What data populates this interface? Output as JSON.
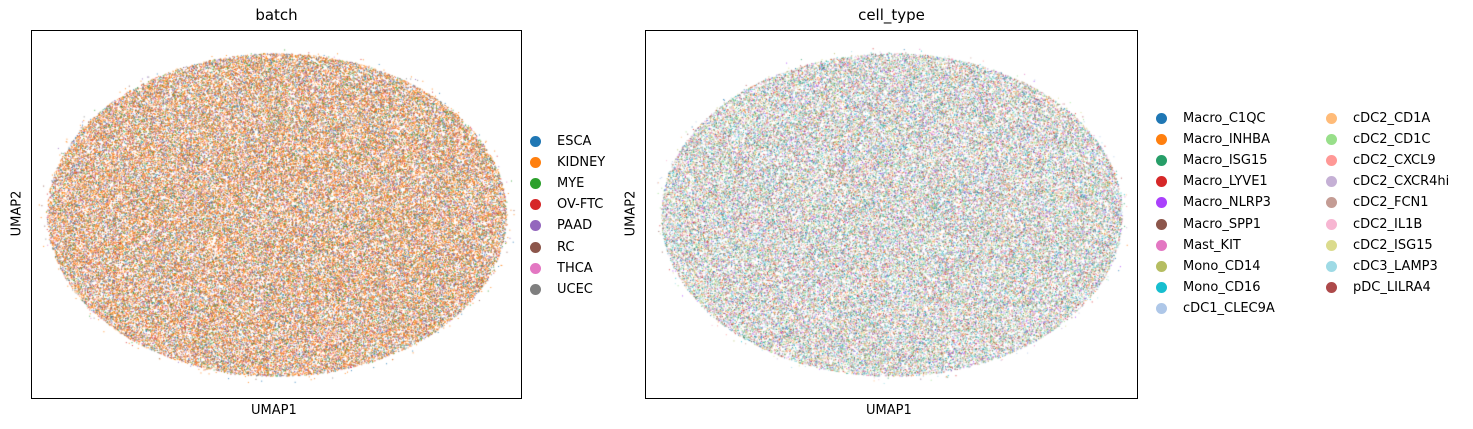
{
  "chart_data": [
    {
      "type": "scatter",
      "title": "batch",
      "xlabel": "UMAP1",
      "ylabel": "UMAP2",
      "ticks": "none",
      "grid": false,
      "legend_placement": "right",
      "series": [
        {
          "name": "ESCA",
          "color": "#1f77b4",
          "weight": 1
        },
        {
          "name": "KIDNEY",
          "color": "#ff7f0e",
          "weight": 5
        },
        {
          "name": "MYE",
          "color": "#2ca02c",
          "weight": 1
        },
        {
          "name": "OV-FTC",
          "color": "#d62728",
          "weight": 0.6
        },
        {
          "name": "PAAD",
          "color": "#9467bd",
          "weight": 0.6
        },
        {
          "name": "RC",
          "color": "#8c564b",
          "weight": 1
        },
        {
          "name": "THCA",
          "color": "#e377c2",
          "weight": 0.6
        },
        {
          "name": "UCEC",
          "color": "#7f7f7f",
          "weight": 0.8
        }
      ]
    },
    {
      "type": "scatter",
      "title": "cell_type",
      "xlabel": "UMAP1",
      "ylabel": "UMAP2",
      "ticks": "none",
      "grid": false,
      "legend_placement": "right",
      "series": [
        {
          "name": "Macro_C1QC",
          "color": "#1f77b4",
          "weight": 1
        },
        {
          "name": "Macro_INHBA",
          "color": "#ff7f0e",
          "weight": 0.6
        },
        {
          "name": "Macro_ISG15",
          "color": "#279e68",
          "weight": 1
        },
        {
          "name": "Macro_LYVE1",
          "color": "#d62728",
          "weight": 0.6
        },
        {
          "name": "Macro_NLRP3",
          "color": "#aa40fc",
          "weight": 0.6
        },
        {
          "name": "Macro_SPP1",
          "color": "#8c564b",
          "weight": 0.6
        },
        {
          "name": "Mast_KIT",
          "color": "#e377c2",
          "weight": 0.6
        },
        {
          "name": "Mono_CD14",
          "color": "#b5bd61",
          "weight": 0.8
        },
        {
          "name": "Mono_CD16",
          "color": "#17becf",
          "weight": 1
        },
        {
          "name": "cDC1_CLEC9A",
          "color": "#aec7e8",
          "weight": 1
        },
        {
          "name": "cDC2_CD1A",
          "color": "#ffbb78",
          "weight": 0.6
        },
        {
          "name": "cDC2_CD1C",
          "color": "#98df8a",
          "weight": 1.2
        },
        {
          "name": "cDC2_CXCL9",
          "color": "#ff9896",
          "weight": 0.6
        },
        {
          "name": "cDC2_CXCR4hi",
          "color": "#c5b0d5",
          "weight": 0.8
        },
        {
          "name": "cDC2_FCN1",
          "color": "#c49c94",
          "weight": 0.6
        },
        {
          "name": "cDC2_IL1B",
          "color": "#f7b6d2",
          "weight": 0.6
        },
        {
          "name": "cDC2_ISG15",
          "color": "#dbdb8d",
          "weight": 0.8
        },
        {
          "name": "cDC3_LAMP3",
          "color": "#9edae5",
          "weight": 1.2
        },
        {
          "name": "pDC_LILRA4",
          "color": "#ad494a",
          "weight": 0.5
        }
      ]
    }
  ]
}
